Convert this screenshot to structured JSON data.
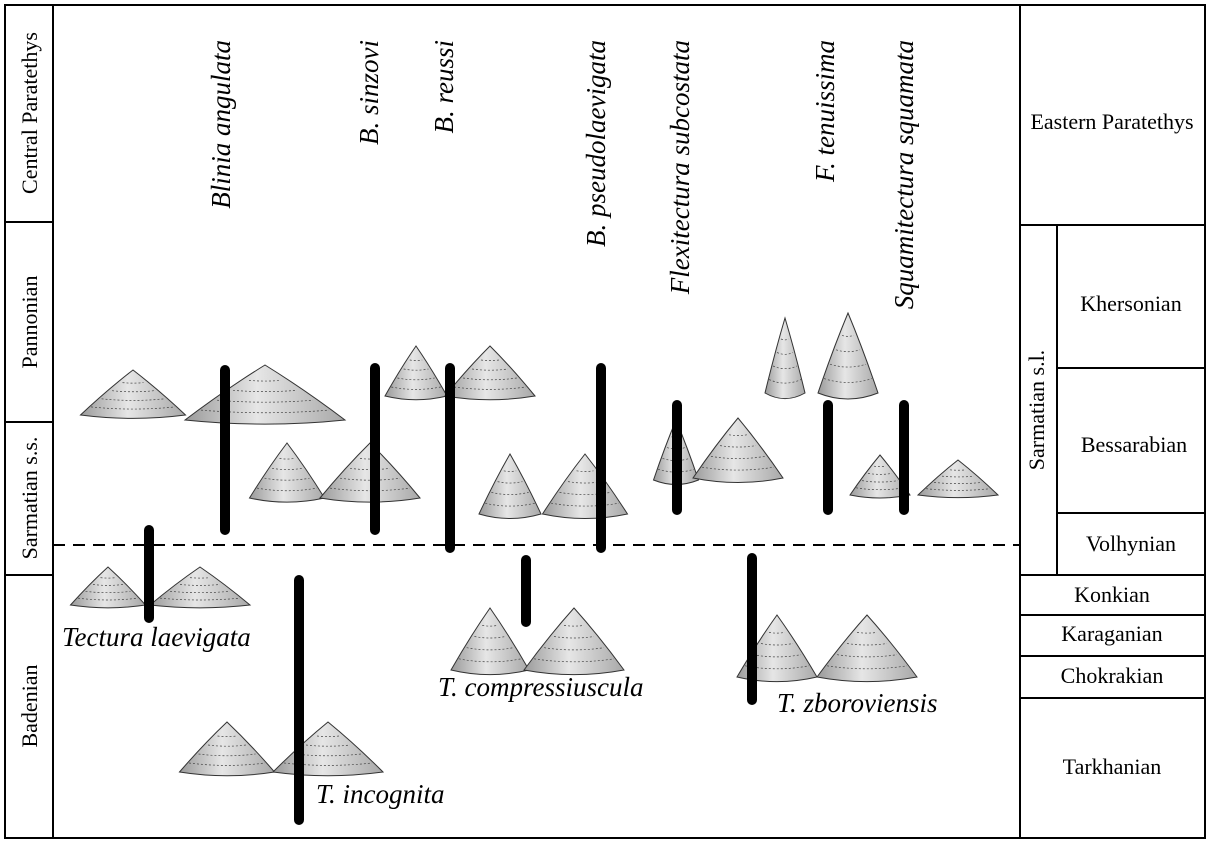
{
  "left_column": {
    "title": "Central Paratethys",
    "stages": [
      "Pannonian",
      "Sarmatian s.s.",
      "Badenian"
    ]
  },
  "right_column": {
    "title": "Eastern Paratethys",
    "group": "Sarmatian s.l.",
    "stages": [
      "Khersonian",
      "Bessarabian",
      "Volhynian",
      "Konkian",
      "Karaganian",
      "Chokrakian",
      "Tarkhanian"
    ]
  },
  "taxa": [
    "Blinia angulata",
    "B. sinzovi",
    "B. reussi",
    "B. pseudolaevigata",
    "Flexitectura subcostata",
    "F. tenuissima",
    "Squamitectura squamata",
    "Tectura laevigata",
    "T. compressiuscula",
    "T. zboroviensis",
    "T. incognita"
  ]
}
